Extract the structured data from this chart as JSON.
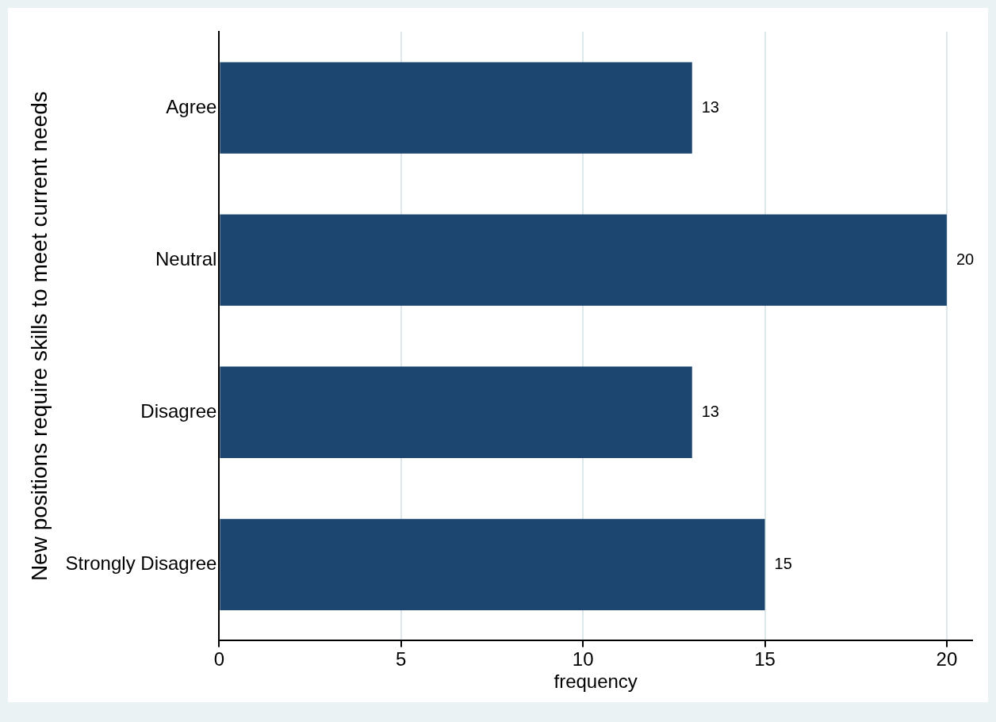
{
  "chart_data": {
    "type": "bar",
    "orientation": "horizontal",
    "categories": [
      "Agree",
      "Neutral",
      "Disagree",
      "Strongly Disagree"
    ],
    "values": [
      13,
      20,
      13,
      15
    ],
    "color": "#1c4670",
    "xlim": [
      0,
      20.7
    ],
    "xticks": [
      0,
      5,
      10,
      15,
      20
    ],
    "xlabel": "frequency",
    "ylabel": "New positions require skills to meet current needs",
    "grid": "x",
    "data_labels": true
  }
}
